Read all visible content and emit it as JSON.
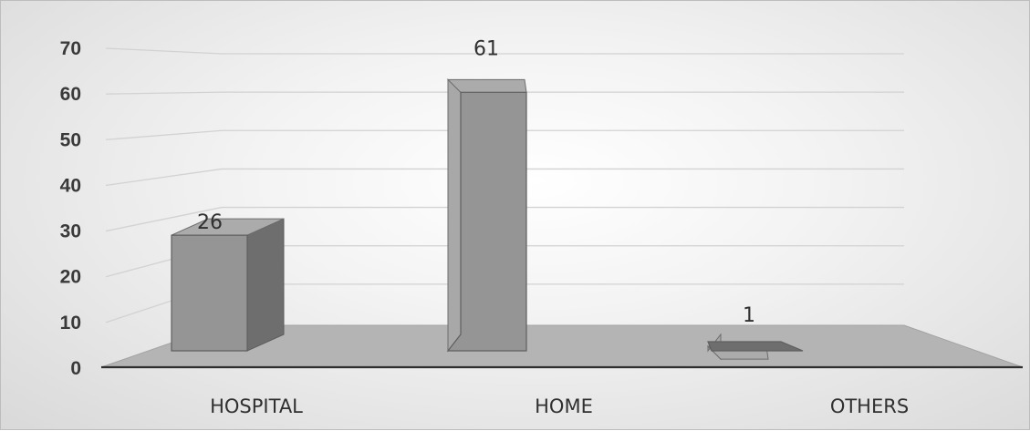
{
  "chart_data": {
    "type": "bar",
    "categories": [
      "HOSPITAL",
      "HOME",
      "OTHERS"
    ],
    "values": [
      26,
      61,
      1
    ],
    "data_labels": [
      "26",
      "61",
      "1"
    ],
    "title": "",
    "xlabel": "",
    "ylabel": "",
    "ylim": [
      0,
      70
    ],
    "yticks": [
      0,
      10,
      20,
      30,
      40,
      50,
      60,
      70
    ],
    "y_tick_labels": [
      "0",
      "10",
      "20",
      "30",
      "40",
      "50",
      "60",
      "70"
    ],
    "grid": true,
    "legend": "none",
    "style": "3d-column",
    "colors": {
      "bar_front": "#959595",
      "bar_side": "#6e6e6e",
      "bar_top": "#ababab",
      "floor": "#b4b4b4",
      "axis_line": "#2e2e2e"
    }
  }
}
